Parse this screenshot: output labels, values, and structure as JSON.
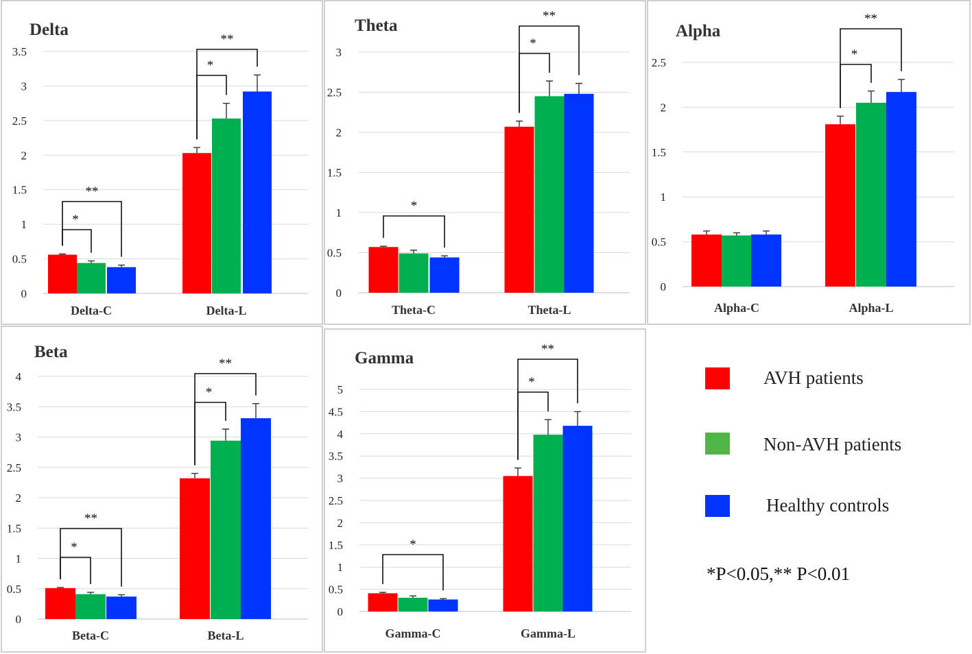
{
  "colors": {
    "avh": "#ff0000",
    "nonavh": "#00b050",
    "healthy": "#0033ff"
  },
  "legend": {
    "items": [
      {
        "label": "AVH patients",
        "color": "#ff0000"
      },
      {
        "label": "Non-AVH patients",
        "color": "#4fb544"
      },
      {
        "label": "Healthy controls",
        "color": "#0033ff"
      }
    ],
    "significance_note": "*P<0.05,** P<0.01"
  },
  "chart_data": [
    {
      "type": "bar",
      "title": "Delta",
      "categories": [
        "Delta-C",
        "Delta-L"
      ],
      "ylim": [
        0,
        3.5
      ],
      "yticks": [
        "0",
        "0.5",
        "1",
        "1.5",
        "2",
        "2.5",
        "3",
        "3.5"
      ],
      "series": [
        {
          "name": "AVH patients",
          "values": [
            0.56,
            2.03
          ],
          "errors": [
            0.01,
            0.08
          ]
        },
        {
          "name": "Non-AVH patients",
          "values": [
            0.44,
            2.53
          ],
          "errors": [
            0.03,
            0.22
          ]
        },
        {
          "name": "Healthy controls",
          "values": [
            0.38,
            2.92
          ],
          "errors": [
            0.03,
            0.24
          ]
        }
      ],
      "significance": [
        {
          "category": 0,
          "from": 0,
          "to": 1,
          "label": "*",
          "level": 1
        },
        {
          "category": 0,
          "from": 0,
          "to": 2,
          "label": "**",
          "level": 2
        },
        {
          "category": 1,
          "from": 0,
          "to": 1,
          "label": "*",
          "level": 1
        },
        {
          "category": 1,
          "from": 0,
          "to": 2,
          "label": "**",
          "level": 2
        }
      ]
    },
    {
      "type": "bar",
      "title": "Theta",
      "categories": [
        "Theta-C",
        "Theta-L"
      ],
      "ylim": [
        0,
        3
      ],
      "yticks": [
        "0",
        "0.5",
        "1",
        "1.5",
        "2",
        "2.5",
        "3"
      ],
      "series": [
        {
          "name": "AVH patients",
          "values": [
            0.57,
            2.07
          ],
          "errors": [
            0.01,
            0.07
          ]
        },
        {
          "name": "Non-AVH patients",
          "values": [
            0.49,
            2.45
          ],
          "errors": [
            0.04,
            0.19
          ]
        },
        {
          "name": "Healthy controls",
          "values": [
            0.44,
            2.48
          ],
          "errors": [
            0.02,
            0.13
          ]
        }
      ],
      "significance": [
        {
          "category": 0,
          "from": 0,
          "to": 2,
          "label": "*",
          "level": 1
        },
        {
          "category": 1,
          "from": 0,
          "to": 1,
          "label": "*",
          "level": 1
        },
        {
          "category": 1,
          "from": 0,
          "to": 2,
          "label": "**",
          "level": 2
        }
      ]
    },
    {
      "type": "bar",
      "title": "Alpha",
      "categories": [
        "Alpha-C",
        "Alpha-L"
      ],
      "ylim": [
        0,
        2.5
      ],
      "yticks": [
        "0",
        "0.5",
        "1",
        "1.5",
        "2",
        "2.5"
      ],
      "series": [
        {
          "name": "AVH patients",
          "values": [
            0.58,
            1.81
          ],
          "errors": [
            0.04,
            0.09
          ]
        },
        {
          "name": "Non-AVH patients",
          "values": [
            0.57,
            2.05
          ],
          "errors": [
            0.03,
            0.13
          ]
        },
        {
          "name": "Healthy controls",
          "values": [
            0.58,
            2.17
          ],
          "errors": [
            0.04,
            0.14
          ]
        }
      ],
      "significance": [
        {
          "category": 1,
          "from": 0,
          "to": 1,
          "label": "*",
          "level": 1
        },
        {
          "category": 1,
          "from": 0,
          "to": 2,
          "label": "**",
          "level": 2
        }
      ]
    },
    {
      "type": "bar",
      "title": "Beta",
      "categories": [
        "Beta-C",
        "Beta-L"
      ],
      "ylim": [
        0,
        4
      ],
      "yticks": [
        "0",
        "0.5",
        "1",
        "1.5",
        "2",
        "2.5",
        "3",
        "3.5",
        "4"
      ],
      "series": [
        {
          "name": "AVH patients",
          "values": [
            0.51,
            2.32
          ],
          "errors": [
            0.01,
            0.08
          ]
        },
        {
          "name": "Non-AVH patients",
          "values": [
            0.41,
            2.94
          ],
          "errors": [
            0.03,
            0.19
          ]
        },
        {
          "name": "Healthy controls",
          "values": [
            0.37,
            3.31
          ],
          "errors": [
            0.03,
            0.24
          ]
        }
      ],
      "significance": [
        {
          "category": 0,
          "from": 0,
          "to": 1,
          "label": "*",
          "level": 1
        },
        {
          "category": 0,
          "from": 0,
          "to": 2,
          "label": "**",
          "level": 2
        },
        {
          "category": 1,
          "from": 0,
          "to": 1,
          "label": "*",
          "level": 1
        },
        {
          "category": 1,
          "from": 0,
          "to": 2,
          "label": "**",
          "level": 2
        }
      ]
    },
    {
      "type": "bar",
      "title": "Gamma",
      "categories": [
        "Gamma-C",
        "Gamma-L"
      ],
      "ylim": [
        0,
        5
      ],
      "yticks": [
        "0",
        "0.5",
        "1",
        "1.5",
        "2",
        "2.5",
        "3",
        "3.5",
        "4",
        "4.5",
        "5"
      ],
      "series": [
        {
          "name": "AVH patients",
          "values": [
            0.41,
            3.05
          ],
          "errors": [
            0.02,
            0.18
          ]
        },
        {
          "name": "Non-AVH patients",
          "values": [
            0.31,
            3.98
          ],
          "errors": [
            0.04,
            0.34
          ]
        },
        {
          "name": "Healthy controls",
          "values": [
            0.27,
            4.18
          ],
          "errors": [
            0.02,
            0.32
          ]
        }
      ],
      "significance": [
        {
          "category": 0,
          "from": 0,
          "to": 2,
          "label": "*",
          "level": 1
        },
        {
          "category": 1,
          "from": 0,
          "to": 1,
          "label": "*",
          "level": 1
        },
        {
          "category": 1,
          "from": 0,
          "to": 2,
          "label": "**",
          "level": 2
        }
      ]
    }
  ]
}
